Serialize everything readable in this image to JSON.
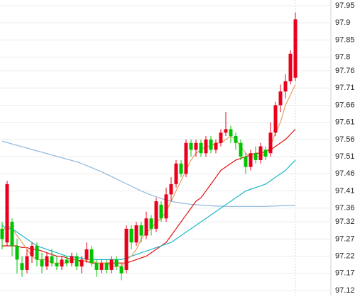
{
  "chart_data": {
    "type": "candlestick",
    "up_color": "#e8001c",
    "down_color": "#00c400",
    "grid": true,
    "ylim": [
      97.12,
      97.95
    ],
    "yticks": [
      97.12,
      97.17,
      97.22,
      97.27,
      97.32,
      97.36,
      97.41,
      97.46,
      97.51,
      97.56,
      97.61,
      97.66,
      97.71,
      97.76,
      97.8,
      97.85,
      97.9,
      97.95
    ],
    "open": [
      97.3,
      97.26,
      97.32,
      97.25,
      97.2,
      97.18,
      97.22,
      97.25,
      97.21,
      97.19,
      97.22,
      97.2,
      97.19,
      97.21,
      97.2,
      97.22,
      97.19,
      97.21,
      97.24,
      97.2,
      97.18,
      97.2,
      97.18,
      97.21,
      97.19,
      97.18,
      97.3,
      97.26,
      97.31,
      97.28,
      97.33,
      97.3,
      97.37,
      97.33,
      97.4,
      97.43,
      97.49,
      97.46,
      97.55,
      97.53,
      97.55,
      97.52,
      97.56,
      97.53,
      97.55,
      97.58,
      97.59,
      97.57,
      97.55,
      97.51,
      97.48,
      97.52,
      97.5,
      97.53,
      97.52,
      97.58,
      97.66,
      97.7,
      97.73,
      97.74
    ],
    "high": [
      97.32,
      97.44,
      97.33,
      97.27,
      97.22,
      97.24,
      97.26,
      97.26,
      97.23,
      97.23,
      97.24,
      97.22,
      97.22,
      97.22,
      97.23,
      97.23,
      97.22,
      97.26,
      97.25,
      97.21,
      97.21,
      97.21,
      97.22,
      97.22,
      97.2,
      97.31,
      97.31,
      97.32,
      97.32,
      97.35,
      97.34,
      97.39,
      97.38,
      97.42,
      97.45,
      97.5,
      97.5,
      97.56,
      97.56,
      97.56,
      97.56,
      97.57,
      97.57,
      97.56,
      97.59,
      97.64,
      97.6,
      97.58,
      97.56,
      97.52,
      97.53,
      97.54,
      97.55,
      97.54,
      97.61,
      97.67,
      97.72,
      97.75,
      97.82,
      97.93
    ],
    "low": [
      97.24,
      97.25,
      97.22,
      97.17,
      97.16,
      97.17,
      97.2,
      97.19,
      97.17,
      97.18,
      97.19,
      97.18,
      97.18,
      97.19,
      97.19,
      97.18,
      97.17,
      97.2,
      97.19,
      97.16,
      97.17,
      97.17,
      97.17,
      97.18,
      97.15,
      97.17,
      97.24,
      97.25,
      97.26,
      97.27,
      97.28,
      97.29,
      97.32,
      97.32,
      97.38,
      97.42,
      97.45,
      97.45,
      97.51,
      97.51,
      97.51,
      97.51,
      97.52,
      97.52,
      97.54,
      97.57,
      97.55,
      97.53,
      97.5,
      97.46,
      97.47,
      97.49,
      97.49,
      97.5,
      97.51,
      97.57,
      97.64,
      97.68,
      97.72,
      97.73
    ],
    "close": [
      97.27,
      97.43,
      97.25,
      97.21,
      97.18,
      97.22,
      97.25,
      97.21,
      97.19,
      97.22,
      97.2,
      97.19,
      97.21,
      97.2,
      97.22,
      97.19,
      97.21,
      97.24,
      97.2,
      97.18,
      97.2,
      97.18,
      97.21,
      97.19,
      97.17,
      97.3,
      97.26,
      97.31,
      97.28,
      97.33,
      97.3,
      97.38,
      97.33,
      97.4,
      97.43,
      97.49,
      97.46,
      97.55,
      97.53,
      97.55,
      97.52,
      97.56,
      97.53,
      97.55,
      97.58,
      97.59,
      97.57,
      97.55,
      97.51,
      97.48,
      97.52,
      97.5,
      97.54,
      97.51,
      97.58,
      97.66,
      97.7,
      97.73,
      97.81,
      97.91
    ],
    "moving_averages": [
      {
        "color": "#8fb8dc",
        "values": [
          97.555,
          97.551,
          97.547,
          97.543,
          97.539,
          97.535,
          97.531,
          97.527,
          97.523,
          97.519,
          97.515,
          97.511,
          97.507,
          97.503,
          97.499,
          97.495,
          97.49,
          97.484,
          97.478,
          97.472,
          97.466,
          97.459,
          97.452,
          97.445,
          97.438,
          97.431,
          97.424,
          97.417,
          97.41,
          97.404,
          97.398,
          97.393,
          97.388,
          97.384,
          97.38,
          97.377,
          97.375,
          97.373,
          97.371,
          97.37,
          97.369,
          97.368,
          97.367,
          97.366,
          97.366,
          97.365,
          97.365,
          97.365,
          97.365,
          97.365,
          97.365,
          97.365,
          97.365,
          97.365,
          97.366,
          97.366,
          97.367,
          97.367,
          97.368,
          97.368
        ]
      },
      {
        "color": "#e01010",
        "values": [
          97.25,
          97.25,
          97.25,
          97.25,
          97.245,
          97.245,
          97.24,
          97.24,
          97.235,
          97.23,
          97.225,
          97.22,
          97.22,
          97.215,
          97.21,
          97.21,
          97.205,
          97.205,
          97.2,
          97.2,
          97.2,
          97.2,
          97.2,
          97.2,
          97.2,
          97.2,
          97.205,
          97.21,
          97.215,
          97.22,
          97.23,
          97.24,
          97.25,
          97.26,
          97.28,
          97.3,
          97.32,
          97.34,
          97.36,
          97.38,
          97.39,
          97.41,
          97.43,
          97.45,
          97.47,
          97.48,
          97.49,
          97.5,
          97.505,
          97.51,
          97.515,
          97.52,
          97.52,
          97.525,
          97.53,
          97.54,
          97.55,
          97.56,
          97.575,
          97.59
        ]
      },
      {
        "color": "#1ab8c8",
        "values": [
          97.31,
          97.3,
          97.3,
          97.29,
          97.28,
          97.27,
          97.26,
          97.25,
          97.245,
          97.24,
          97.235,
          97.23,
          97.225,
          97.22,
          97.22,
          97.215,
          97.215,
          97.21,
          97.21,
          97.21,
          97.21,
          97.21,
          97.21,
          97.21,
          97.21,
          97.215,
          97.22,
          97.225,
          97.23,
          97.235,
          97.24,
          97.245,
          97.25,
          97.255,
          97.26,
          97.27,
          97.28,
          97.29,
          97.3,
          97.31,
          97.32,
          97.33,
          97.34,
          97.35,
          97.36,
          97.37,
          97.38,
          97.39,
          97.4,
          97.41,
          97.415,
          97.42,
          97.425,
          97.43,
          97.44,
          97.45,
          97.46,
          97.47,
          97.485,
          97.5
        ]
      },
      {
        "color": "#e8a060",
        "values": [
          97.29,
          97.31,
          97.3,
          97.28,
          97.26,
          97.24,
          97.22,
          97.21,
          97.21,
          97.21,
          97.2,
          97.2,
          97.2,
          97.2,
          97.21,
          97.21,
          97.2,
          97.21,
          97.21,
          97.2,
          97.2,
          97.2,
          97.19,
          97.19,
          97.19,
          97.21,
          97.22,
          97.24,
          97.27,
          97.29,
          97.3,
          97.32,
          97.33,
          97.35,
          97.38,
          97.41,
          97.44,
          97.47,
          97.5,
          97.52,
          97.53,
          97.54,
          97.54,
          97.55,
          97.55,
          97.56,
          97.57,
          97.56,
          97.54,
          97.52,
          97.51,
          97.51,
          97.51,
          97.52,
          97.54,
          97.58,
          97.61,
          97.66,
          97.69,
          97.72
        ]
      }
    ]
  }
}
